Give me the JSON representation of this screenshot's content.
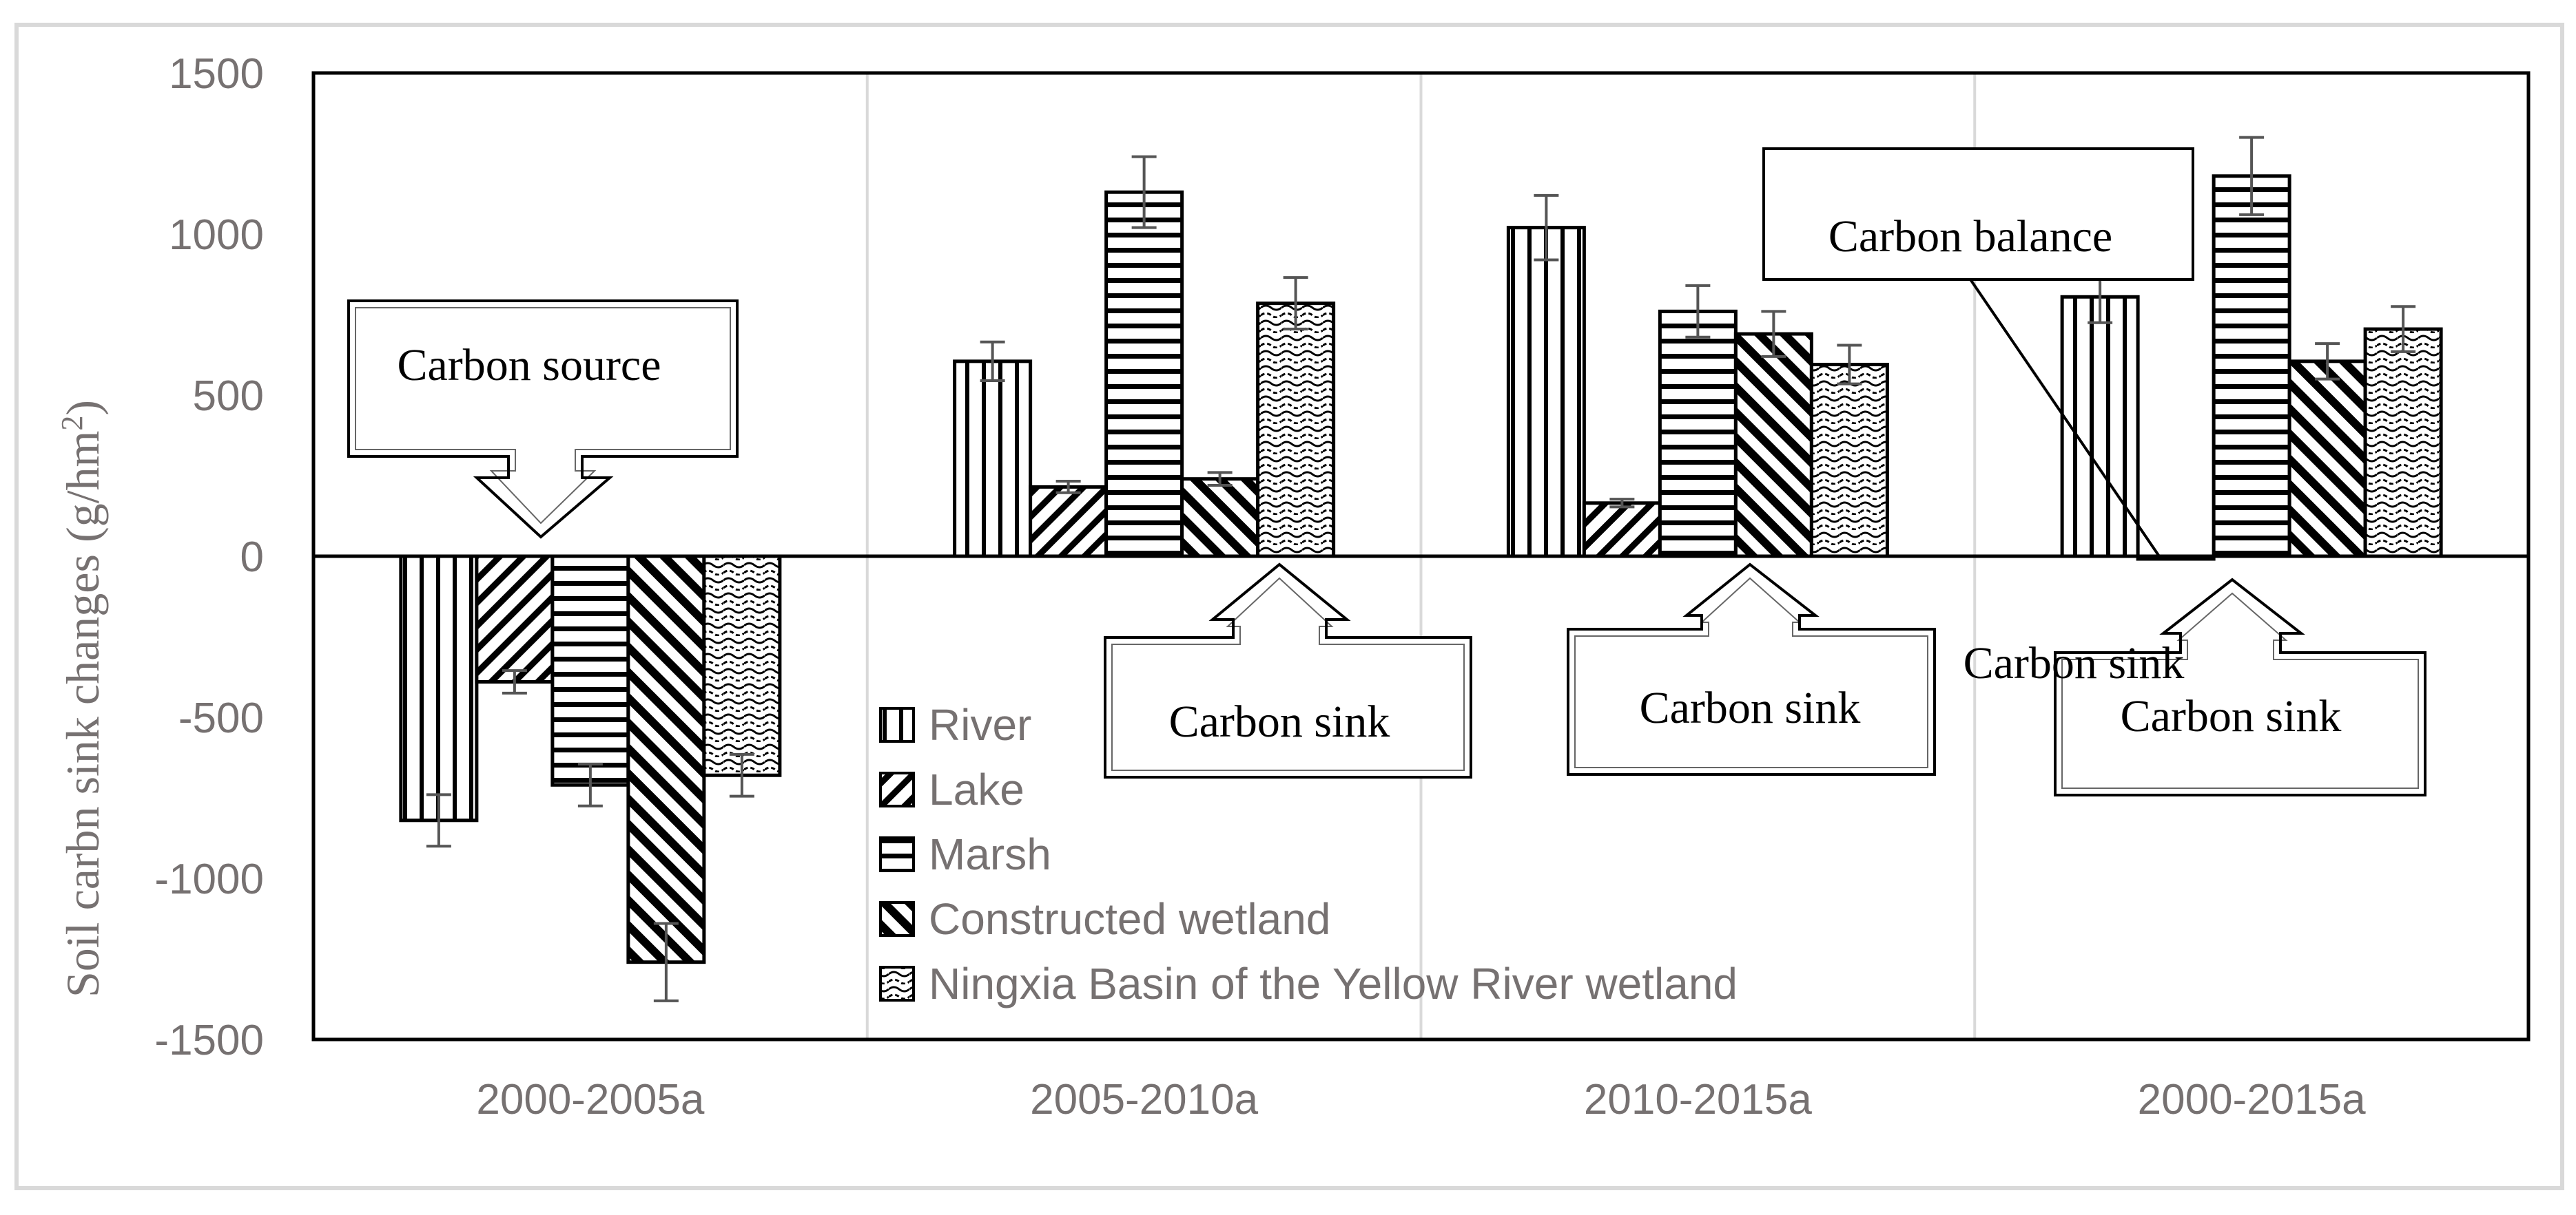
{
  "chart_data": {
    "type": "bar",
    "title": "",
    "xlabel": "",
    "ylabel": "Soil carbn sink changes (g/hm",
    "ylabel_sup": "2",
    "ylabel_close": ")",
    "ylim": [
      -1500,
      1500
    ],
    "yticks": [
      1500,
      1000,
      500,
      0,
      -500,
      -1000,
      -1500
    ],
    "ytick_labels": [
      "1500",
      "1000",
      "500",
      "0",
      "-500",
      "-1000",
      "-1500"
    ],
    "categories": [
      "2000-2005a",
      "2005-2010a",
      "2010-2015a",
      "2000-2015a"
    ],
    "series": [
      {
        "name": "River",
        "pattern": "vertical",
        "values": [
          -820,
          605,
          1020,
          805
        ],
        "errors": [
          80,
          60,
          100,
          80
        ]
      },
      {
        "name": "Lake",
        "pattern": "diag-back",
        "values": [
          -390,
          215,
          165,
          -5
        ],
        "errors": [
          35,
          18,
          12,
          0
        ]
      },
      {
        "name": "Marsh",
        "pattern": "horizontal",
        "values": [
          -710,
          1130,
          760,
          1180
        ],
        "errors": [
          65,
          110,
          80,
          120
        ]
      },
      {
        "name": "Constructed wetland",
        "pattern": "diag-fwd",
        "values": [
          -1260,
          240,
          690,
          605
        ],
        "errors": [
          120,
          20,
          70,
          55
        ]
      },
      {
        "name": "Ningxia Basin of the Yellow River wetland",
        "pattern": "wave",
        "values": [
          -680,
          785,
          595,
          705
        ],
        "errors": [
          65,
          80,
          60,
          70
        ]
      }
    ],
    "legend_position": "lower-center",
    "annotations": [
      {
        "id": "carbon-source",
        "text": "Carbon source"
      },
      {
        "id": "carbon-sink-1",
        "text": "Carbon sink"
      },
      {
        "id": "carbon-sink-2",
        "text": "Carbon sink"
      },
      {
        "id": "carbon-sink-3",
        "text": "Carbon sink"
      },
      {
        "id": "carbon-sink-label",
        "text": "Carbon sink"
      },
      {
        "id": "carbon-balance",
        "text": "Carbon balance"
      }
    ]
  },
  "colors": {
    "axis": "#000000",
    "tick_text": "#767171",
    "grid": "#d9d9d9",
    "bar_stroke": "#000000",
    "error_bar": "#555555",
    "frame": "#d9d9d9"
  }
}
